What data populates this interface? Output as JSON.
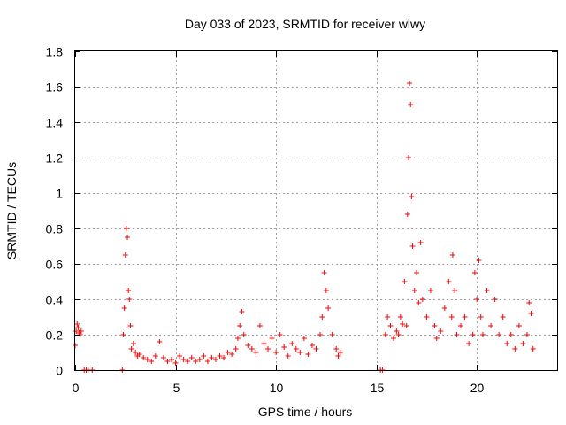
{
  "chart_data": {
    "type": "scatter",
    "title": "Day 033 of 2023, SRMTID for receiver wlwy",
    "xlabel": "GPS time / hours",
    "ylabel": "SRMTID / TECUs",
    "xlim": [
      0,
      24
    ],
    "ylim": [
      0,
      1.8
    ],
    "xticks": [
      0,
      5,
      10,
      15,
      20
    ],
    "xtick_labels": [
      "0",
      "5",
      "10",
      "15",
      "20"
    ],
    "yticks": [
      0,
      0.2,
      0.4,
      0.6,
      0.8,
      1,
      1.2,
      1.4,
      1.6,
      1.8
    ],
    "ytick_labels": [
      "0",
      "0.2",
      "0.4",
      "0.6",
      "0.8",
      "1",
      "1.2",
      "1.4",
      "1.6",
      "1.8"
    ],
    "grid": true,
    "marker": "+",
    "marker_color": "#ff0000",
    "series": [
      {
        "name": "SRMTID",
        "x": [
          0.0,
          0.05,
          0.1,
          0.15,
          0.2,
          0.25,
          0.3,
          0.45,
          0.55,
          0.65,
          0.85,
          2.35,
          2.4,
          2.45,
          2.5,
          2.55,
          2.6,
          2.65,
          2.7,
          2.75,
          2.8,
          2.9,
          3.0,
          3.1,
          3.2,
          3.4,
          3.6,
          3.8,
          4.0,
          4.2,
          4.4,
          4.6,
          4.8,
          5.0,
          5.2,
          5.4,
          5.6,
          5.8,
          6.0,
          6.2,
          6.4,
          6.6,
          6.8,
          7.0,
          7.2,
          7.4,
          7.6,
          7.8,
          8.0,
          8.1,
          8.2,
          8.3,
          8.4,
          8.6,
          8.8,
          9.0,
          9.2,
          9.4,
          9.6,
          9.8,
          10.0,
          10.2,
          10.4,
          10.6,
          10.8,
          11.0,
          11.2,
          11.4,
          11.6,
          11.8,
          12.0,
          12.2,
          12.3,
          12.4,
          12.5,
          12.6,
          12.8,
          13.0,
          13.1,
          13.2,
          15.2,
          15.3,
          15.45,
          15.55,
          15.7,
          15.85,
          16.0,
          16.1,
          16.2,
          16.3,
          16.4,
          16.5,
          16.55,
          16.6,
          16.65,
          16.7,
          16.75,
          16.8,
          16.9,
          17.0,
          17.1,
          17.2,
          17.3,
          17.5,
          17.7,
          17.9,
          18.0,
          18.2,
          18.4,
          18.6,
          18.75,
          18.8,
          18.9,
          19.0,
          19.2,
          19.4,
          19.6,
          19.8,
          19.9,
          20.0,
          20.1,
          20.2,
          20.3,
          20.5,
          20.7,
          20.9,
          21.1,
          21.3,
          21.5,
          21.7,
          21.9,
          22.1,
          22.3,
          22.5,
          22.6,
          22.7,
          22.8
        ],
        "y": [
          0.14,
          0.22,
          0.26,
          0.24,
          0.21,
          0.2,
          0.22,
          0.0,
          0.0,
          0.0,
          0.0,
          0.0,
          0.2,
          0.35,
          0.65,
          0.8,
          0.75,
          0.45,
          0.4,
          0.25,
          0.12,
          0.15,
          0.1,
          0.08,
          0.09,
          0.07,
          0.06,
          0.05,
          0.08,
          0.16,
          0.07,
          0.05,
          0.06,
          0.04,
          0.08,
          0.06,
          0.05,
          0.07,
          0.05,
          0.06,
          0.08,
          0.05,
          0.07,
          0.06,
          0.08,
          0.07,
          0.1,
          0.09,
          0.12,
          0.18,
          0.25,
          0.33,
          0.2,
          0.14,
          0.12,
          0.1,
          0.25,
          0.15,
          0.12,
          0.18,
          0.1,
          0.2,
          0.13,
          0.08,
          0.15,
          0.12,
          0.1,
          0.18,
          0.09,
          0.14,
          0.12,
          0.2,
          0.3,
          0.55,
          0.45,
          0.35,
          0.2,
          0.12,
          0.08,
          0.1,
          0.0,
          0.0,
          0.2,
          0.3,
          0.25,
          0.18,
          0.22,
          0.2,
          0.3,
          0.26,
          0.5,
          0.25,
          0.88,
          1.2,
          1.62,
          1.5,
          0.98,
          0.7,
          0.45,
          0.55,
          0.38,
          0.72,
          0.4,
          0.3,
          0.45,
          0.25,
          0.18,
          0.22,
          0.35,
          0.5,
          0.3,
          0.65,
          0.45,
          0.2,
          0.25,
          0.3,
          0.15,
          0.2,
          0.55,
          0.4,
          0.62,
          0.3,
          0.2,
          0.45,
          0.25,
          0.4,
          0.2,
          0.3,
          0.15,
          0.2,
          0.12,
          0.25,
          0.15,
          0.2,
          0.38,
          0.32,
          0.12
        ]
      }
    ]
  }
}
